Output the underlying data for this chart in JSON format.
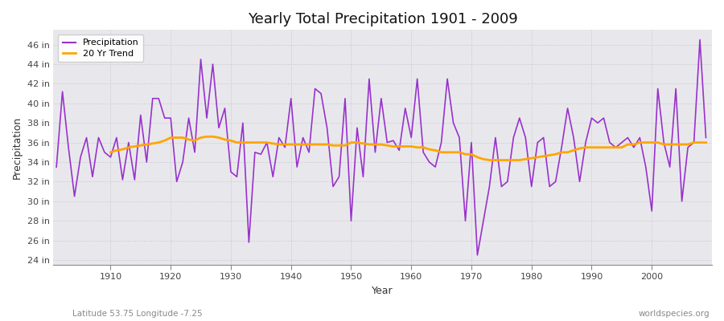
{
  "title": "Yearly Total Precipitation 1901 - 2009",
  "xlabel": "Year",
  "ylabel": "Precipitation",
  "fig_bg_color": "#ffffff",
  "plot_bg_color": "#e8e8ec",
  "precip_color": "#9932CC",
  "trend_color": "#FFA500",
  "subtitle_left": "Latitude 53.75 Longitude -7.25",
  "subtitle_right": "worldspecies.org",
  "ylim_min": 23.5,
  "ylim_max": 47.5,
  "ytick_labels": [
    "24 in",
    "26 in",
    "28 in",
    "30 in",
    "32 in",
    "34 in",
    "36 in",
    "38 in",
    "40 in",
    "42 in",
    "44 in",
    "46 in"
  ],
  "ytick_values": [
    24,
    26,
    28,
    30,
    32,
    34,
    36,
    38,
    40,
    42,
    44,
    46
  ],
  "years": [
    1901,
    1902,
    1903,
    1904,
    1905,
    1906,
    1907,
    1908,
    1909,
    1910,
    1911,
    1912,
    1913,
    1914,
    1915,
    1916,
    1917,
    1918,
    1919,
    1920,
    1921,
    1922,
    1923,
    1924,
    1925,
    1926,
    1927,
    1928,
    1929,
    1930,
    1931,
    1932,
    1933,
    1934,
    1935,
    1936,
    1937,
    1938,
    1939,
    1940,
    1941,
    1942,
    1943,
    1944,
    1945,
    1946,
    1947,
    1948,
    1949,
    1950,
    1951,
    1952,
    1953,
    1954,
    1955,
    1956,
    1957,
    1958,
    1959,
    1960,
    1961,
    1962,
    1963,
    1964,
    1965,
    1966,
    1967,
    1968,
    1969,
    1970,
    1971,
    1972,
    1973,
    1974,
    1975,
    1976,
    1977,
    1978,
    1979,
    1980,
    1981,
    1982,
    1983,
    1984,
    1985,
    1986,
    1987,
    1988,
    1989,
    1990,
    1991,
    1992,
    1993,
    1994,
    1995,
    1996,
    1997,
    1998,
    1999,
    2000,
    2001,
    2002,
    2003,
    2004,
    2005,
    2006,
    2007,
    2008,
    2009
  ],
  "precipitation": [
    33.5,
    41.2,
    35.5,
    30.5,
    34.5,
    36.5,
    32.5,
    36.5,
    35.0,
    34.5,
    36.5,
    32.2,
    36.0,
    32.2,
    38.8,
    34.0,
    40.5,
    40.5,
    38.5,
    38.5,
    32.0,
    34.0,
    38.5,
    35.0,
    44.5,
    38.5,
    44.0,
    37.5,
    39.5,
    33.0,
    32.5,
    38.0,
    25.8,
    35.0,
    34.8,
    36.0,
    32.5,
    36.5,
    35.5,
    40.5,
    33.5,
    36.5,
    35.0,
    41.5,
    41.0,
    37.5,
    31.5,
    32.5,
    40.5,
    28.0,
    37.5,
    32.5,
    42.5,
    35.0,
    40.5,
    36.0,
    36.2,
    35.2,
    39.5,
    36.5,
    42.5,
    35.0,
    34.0,
    33.5,
    36.0,
    42.5,
    38.0,
    36.5,
    28.0,
    36.0,
    24.5,
    28.0,
    31.5,
    36.5,
    31.5,
    32.0,
    36.5,
    38.5,
    36.5,
    31.5,
    36.0,
    36.5,
    31.5,
    32.0,
    35.5,
    39.5,
    36.5,
    32.0,
    36.0,
    38.5,
    38.0,
    38.5,
    36.0,
    35.5,
    36.0,
    36.5,
    35.5,
    36.5,
    33.5,
    29.0,
    41.5,
    36.0,
    33.5,
    41.5,
    30.0,
    35.5,
    36.0,
    46.5,
    36.5
  ],
  "trend": [
    null,
    null,
    null,
    null,
    null,
    null,
    null,
    null,
    null,
    35.0,
    35.2,
    35.3,
    35.5,
    35.6,
    35.7,
    35.8,
    35.9,
    36.0,
    36.2,
    36.5,
    36.5,
    36.5,
    36.3,
    36.2,
    36.5,
    36.6,
    36.6,
    36.5,
    36.3,
    36.2,
    36.0,
    36.0,
    36.0,
    36.0,
    36.0,
    36.0,
    35.9,
    35.8,
    35.8,
    35.8,
    35.8,
    35.8,
    35.8,
    35.8,
    35.8,
    35.8,
    35.7,
    35.7,
    35.7,
    36.0,
    36.0,
    35.9,
    35.8,
    35.8,
    35.8,
    35.7,
    35.6,
    35.6,
    35.6,
    35.6,
    35.5,
    35.5,
    35.3,
    35.2,
    35.0,
    35.0,
    35.0,
    35.0,
    34.8,
    34.8,
    34.5,
    34.3,
    34.2,
    34.2,
    34.2,
    34.2,
    34.2,
    34.2,
    34.3,
    34.4,
    34.5,
    34.6,
    34.7,
    34.8,
    35.0,
    35.0,
    35.2,
    35.4,
    35.5,
    35.5,
    35.5,
    35.5,
    35.5,
    35.5,
    35.5,
    35.8,
    35.8,
    36.0,
    36.0,
    36.0,
    36.0,
    35.8,
    35.8,
    35.8,
    35.8,
    35.8,
    36.0,
    36.0,
    36.0
  ]
}
